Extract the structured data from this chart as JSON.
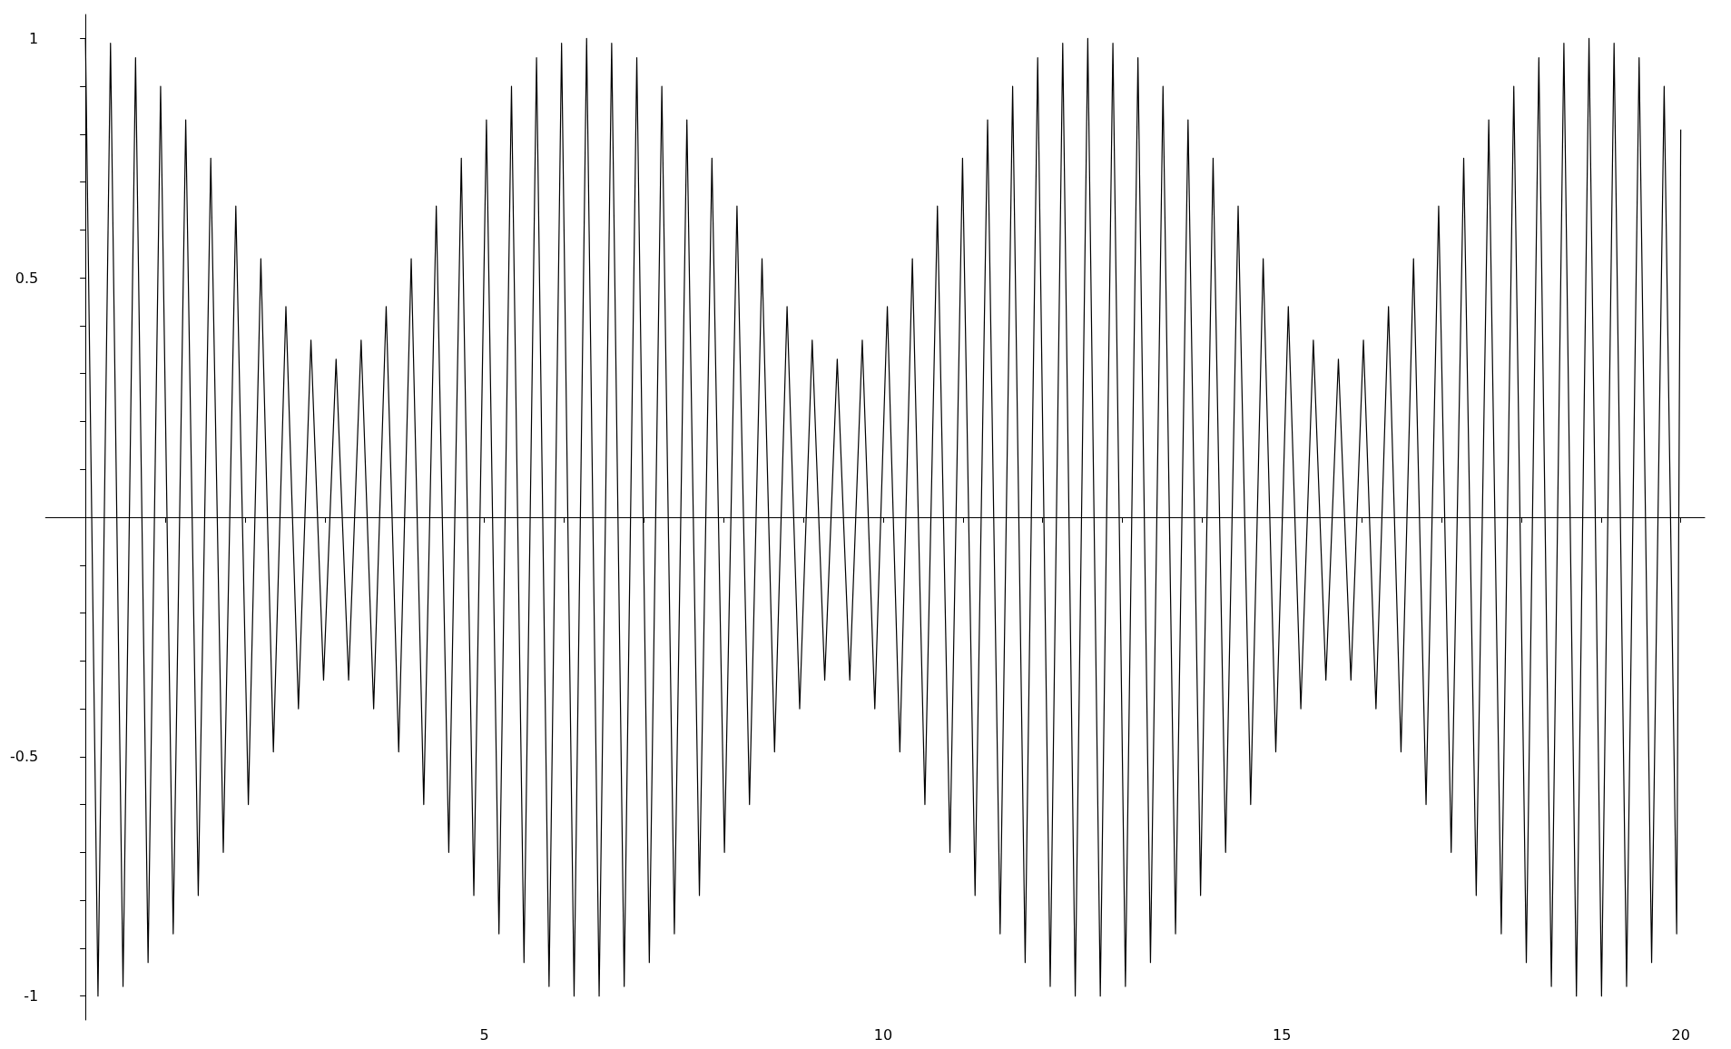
{
  "chart_data": {
    "type": "line",
    "x": [
      0,
      0.157,
      0.314,
      0.471,
      0.628,
      0.785,
      0.942,
      1.1,
      1.257,
      1.414,
      1.571,
      1.728,
      1.885,
      2.042,
      2.199,
      2.356,
      2.513,
      2.67,
      2.827,
      2.985,
      3.142,
      3.299,
      3.456,
      3.613,
      3.77,
      3.927,
      4.084,
      4.241,
      4.398,
      4.555,
      4.712,
      4.869,
      5.027,
      5.184,
      5.341,
      5.498,
      5.655,
      5.812,
      5.969,
      6.126,
      6.283,
      6.44,
      6.597,
      6.754,
      6.912,
      7.069,
      7.226,
      7.383,
      7.54,
      7.697,
      7.854,
      8.011,
      8.168,
      8.325,
      8.482,
      8.639,
      8.796,
      8.954,
      9.111,
      9.268,
      9.425,
      9.582,
      9.739,
      9.896,
      10.053,
      10.21,
      10.367,
      10.524,
      10.681,
      10.838,
      10.996,
      11.153,
      11.31,
      11.467,
      11.624,
      11.781,
      11.938,
      12.095,
      12.252,
      12.409,
      12.566,
      12.723,
      12.881,
      13.038,
      13.195,
      13.352,
      13.509,
      13.666,
      13.823,
      13.98,
      14.137,
      14.294,
      14.451,
      14.608,
      14.765,
      14.923,
      15.08,
      15.237,
      15.394,
      15.551,
      15.708,
      15.865,
      16.022,
      16.179,
      16.336,
      16.493,
      16.65,
      16.807,
      16.965,
      17.122,
      17.279,
      17.436,
      17.593,
      17.75,
      17.907,
      18.064,
      18.221,
      18.378,
      18.535,
      18.692,
      18.85,
      19.007,
      19.164,
      19.321,
      19.478,
      19.635,
      19.792,
      19.949,
      20
    ],
    "series": [
      {
        "color": "#000000",
        "values": [
          1,
          -1,
          0.99,
          -0.98,
          0.96,
          -0.93,
          0.9,
          -0.87,
          0.83,
          -0.79,
          0.75,
          -0.7,
          0.65,
          -0.6,
          0.54,
          -0.49,
          0.44,
          -0.4,
          0.37,
          -0.34,
          0.33,
          -0.34,
          0.37,
          -0.4,
          0.44,
          -0.49,
          0.54,
          -0.6,
          0.65,
          -0.7,
          0.75,
          -0.79,
          0.83,
          -0.87,
          0.9,
          -0.93,
          0.96,
          -0.98,
          0.99,
          -1,
          1,
          -1,
          0.99,
          -0.98,
          0.96,
          -0.93,
          0.9,
          -0.87,
          0.83,
          -0.79,
          0.75,
          -0.7,
          0.65,
          -0.6,
          0.54,
          -0.49,
          0.44,
          -0.4,
          0.37,
          -0.34,
          0.33,
          -0.34,
          0.37,
          -0.4,
          0.44,
          -0.49,
          0.54,
          -0.6,
          0.65,
          -0.7,
          0.75,
          -0.79,
          0.83,
          -0.87,
          0.9,
          -0.93,
          0.96,
          -0.98,
          0.99,
          -1,
          1,
          -1,
          0.99,
          -0.98,
          0.96,
          -0.93,
          0.9,
          -0.87,
          0.83,
          -0.79,
          0.75,
          -0.7,
          0.65,
          -0.6,
          0.54,
          -0.49,
          0.44,
          -0.4,
          0.37,
          -0.34,
          0.33,
          -0.34,
          0.37,
          -0.4,
          0.44,
          -0.49,
          0.54,
          -0.6,
          0.65,
          -0.7,
          0.75,
          -0.79,
          0.83,
          -0.87,
          0.9,
          -0.93,
          0.96,
          -0.98,
          0.99,
          -1,
          1,
          -1,
          0.99,
          -0.98,
          0.96,
          -0.93,
          0.9,
          -0.87,
          0.81
        ]
      }
    ],
    "xlim": [
      -0.5,
      20.3
    ],
    "ylim": [
      -1.05,
      1.05
    ],
    "xticks": [
      {
        "value": 1,
        "label": null
      },
      {
        "value": 2,
        "label": null
      },
      {
        "value": 3,
        "label": null
      },
      {
        "value": 4,
        "label": null
      },
      5,
      {
        "value": 6,
        "label": null
      },
      {
        "value": 7,
        "label": null
      },
      {
        "value": 8,
        "label": null
      },
      {
        "value": 9,
        "label": null
      },
      10,
      {
        "value": 11,
        "label": null
      },
      {
        "value": 12,
        "label": null
      },
      {
        "value": 13,
        "label": null
      },
      {
        "value": 14,
        "label": null
      },
      15,
      {
        "value": 16,
        "label": null
      },
      {
        "value": 17,
        "label": null
      },
      {
        "value": 18,
        "label": null
      },
      {
        "value": 19,
        "label": null
      },
      20
    ],
    "yticks": [
      -1,
      {
        "value": -0.9,
        "label": null
      },
      {
        "value": -0.8,
        "label": null
      },
      {
        "value": -0.7,
        "label": null
      },
      {
        "value": -0.6,
        "label": null
      },
      -0.5,
      {
        "value": -0.4,
        "label": null
      },
      {
        "value": -0.3,
        "label": null
      },
      {
        "value": -0.2,
        "label": null
      },
      {
        "value": -0.1,
        "label": null
      },
      {
        "value": 0.1,
        "label": null
      },
      {
        "value": 0.2,
        "label": null
      },
      {
        "value": 0.3,
        "label": null
      },
      {
        "value": 0.4,
        "label": null
      },
      0.5,
      {
        "value": 0.6,
        "label": null
      },
      {
        "value": 0.7,
        "label": null
      },
      {
        "value": 0.8,
        "label": null
      },
      {
        "value": 0.9,
        "label": null
      },
      1
    ]
  }
}
